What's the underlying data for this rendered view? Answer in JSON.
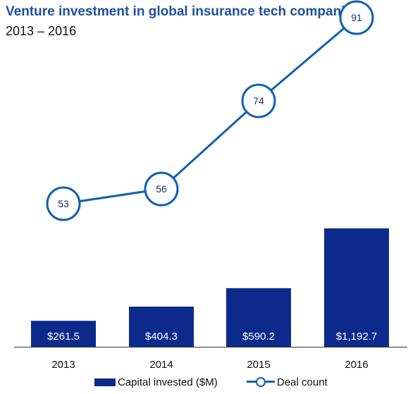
{
  "title": "Venture investment in global insurance tech companies",
  "subtitle": "2013 – 2016",
  "colors": {
    "bar": "#0b2a8c",
    "line": "#1060b0",
    "marker_fill": "#ffffff",
    "title": "#1f4e9c"
  },
  "chart_data": {
    "type": "bar+line",
    "categories": [
      "2013",
      "2014",
      "2015",
      "2016"
    ],
    "series": [
      {
        "name": "Capital invested ($M)",
        "type": "bar",
        "values": [
          261.5,
          404.3,
          590.2,
          1192.7
        ],
        "labels": [
          "$261.5",
          "$404.3",
          "$590.2",
          "$1,192.7"
        ]
      },
      {
        "name": "Deal count",
        "type": "line",
        "values": [
          53,
          56,
          74,
          91
        ],
        "labels": [
          "53",
          "56",
          "74",
          "91"
        ]
      }
    ],
    "legend_position": "bottom",
    "grid": false
  }
}
